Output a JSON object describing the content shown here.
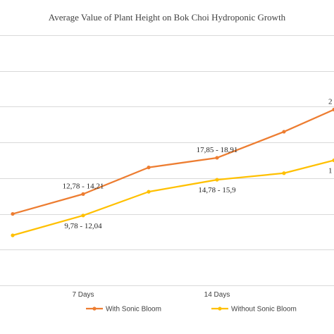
{
  "chart_data": {
    "type": "line",
    "title": "Average Value of Plant Height on Bok Choi Hydroponic Growth",
    "xlabel": "",
    "ylabel": "",
    "categories": [
      "",
      "7 Days",
      "",
      "14 Days",
      "",
      ""
    ],
    "ylim": [
      0,
      35
    ],
    "grid": true,
    "legend_position": "bottom",
    "series": [
      {
        "name": "With Sonic Bloom",
        "color": "#ED7D31",
        "values": [
          10.0,
          12.78,
          16.5,
          17.85,
          21.5,
          24.6
        ]
      },
      {
        "name": "Without Sonic Bloom",
        "color": "#FFC000",
        "values": [
          7.0,
          9.78,
          13.1,
          14.78,
          15.7,
          17.5
        ]
      }
    ],
    "data_labels": [
      {
        "series": 0,
        "index": 1,
        "text": "12,78 - 14,21"
      },
      {
        "series": 0,
        "index": 3,
        "text": "17,85 - 18,91"
      },
      {
        "series": 0,
        "index": 5,
        "text": "2"
      },
      {
        "series": 1,
        "index": 1,
        "text": "9,78 - 12,04"
      },
      {
        "series": 1,
        "index": 3,
        "text": "14,78 - 15,9"
      },
      {
        "series": 1,
        "index": 5,
        "text": "1"
      }
    ]
  }
}
